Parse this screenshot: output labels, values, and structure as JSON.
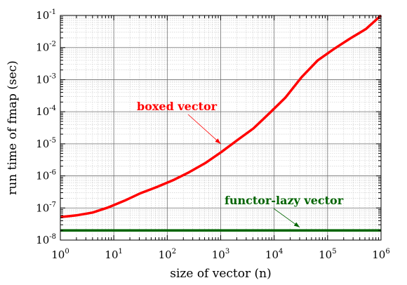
{
  "chart_data": {
    "type": "line",
    "xlabel": "size of vector (n)",
    "ylabel": "run time of fmap (sec)",
    "x_scale": "log",
    "y_scale": "log",
    "xlim": [
      1,
      1000000
    ],
    "ylim": [
      1e-08,
      0.1
    ],
    "grid": true,
    "x_ticks": [
      {
        "base": "10",
        "exp": "0"
      },
      {
        "base": "10",
        "exp": "1"
      },
      {
        "base": "10",
        "exp": "2"
      },
      {
        "base": "10",
        "exp": "3"
      },
      {
        "base": "10",
        "exp": "4"
      },
      {
        "base": "10",
        "exp": "5"
      },
      {
        "base": "10",
        "exp": "6"
      }
    ],
    "y_ticks": [
      {
        "base": "10",
        "exp": "-8"
      },
      {
        "base": "10",
        "exp": "-7"
      },
      {
        "base": "10",
        "exp": "-6"
      },
      {
        "base": "10",
        "exp": "-5"
      },
      {
        "base": "10",
        "exp": "-4"
      },
      {
        "base": "10",
        "exp": "-3"
      },
      {
        "base": "10",
        "exp": "-2"
      },
      {
        "base": "10",
        "exp": "-1"
      }
    ],
    "series": [
      {
        "name": "boxed vector",
        "color": "#ff0000",
        "x": [
          1,
          2,
          4,
          8,
          16,
          32,
          64,
          128,
          256,
          512,
          1024,
          2048,
          4096,
          8192,
          16384,
          32768,
          65536,
          131072,
          262144,
          524288,
          1000000
        ],
        "y": [
          5.2e-08,
          5.9e-08,
          7.2e-08,
          1.05e-07,
          1.7e-07,
          2.9e-07,
          4.5e-07,
          7.3e-07,
          1.3e-06,
          2.5e-06,
          5.5e-06,
          1.3e-05,
          3e-05,
          9e-05,
          0.00028,
          0.0012,
          0.004,
          0.009,
          0.019,
          0.038,
          0.1
        ]
      },
      {
        "name": "functor-lazy vector",
        "color": "#006400",
        "x": [
          1,
          1000000
        ],
        "y": [
          2e-08,
          2e-08
        ]
      }
    ],
    "annotations": [
      {
        "text": "boxed vector",
        "color": "#ff0000",
        "points_to": [
          1000,
          1e-05
        ]
      },
      {
        "text": "functor-lazy vector",
        "color": "#006400",
        "points_to": [
          30000,
          2.5e-08
        ]
      }
    ]
  }
}
